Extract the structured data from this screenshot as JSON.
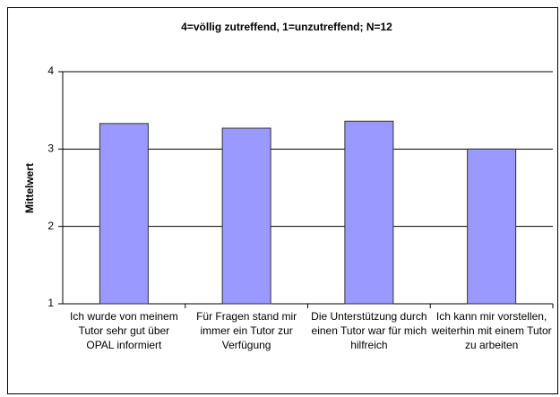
{
  "chart_data": {
    "type": "bar",
    "title": "4=völlig zutreffend, 1=unzutreffend; N=12",
    "y_label": "Mittelwert",
    "categories": [
      "Ich wurde von meinem Tutor sehr gut über OPAL informiert",
      "Für Fragen stand mir immer ein Tutor zur Verfügung",
      "Die Unterstützung durch einen Tutor war für mich hilfreich",
      "Ich kann mir vorstellen, weiterhin mit einem Tutor zu arbeiten"
    ],
    "values": [
      3.33,
      3.27,
      3.36,
      3.0
    ],
    "color": "#9999ff",
    "ylim": [
      1,
      4
    ],
    "yticks": [
      1,
      2,
      3,
      4
    ],
    "grid": true
  }
}
